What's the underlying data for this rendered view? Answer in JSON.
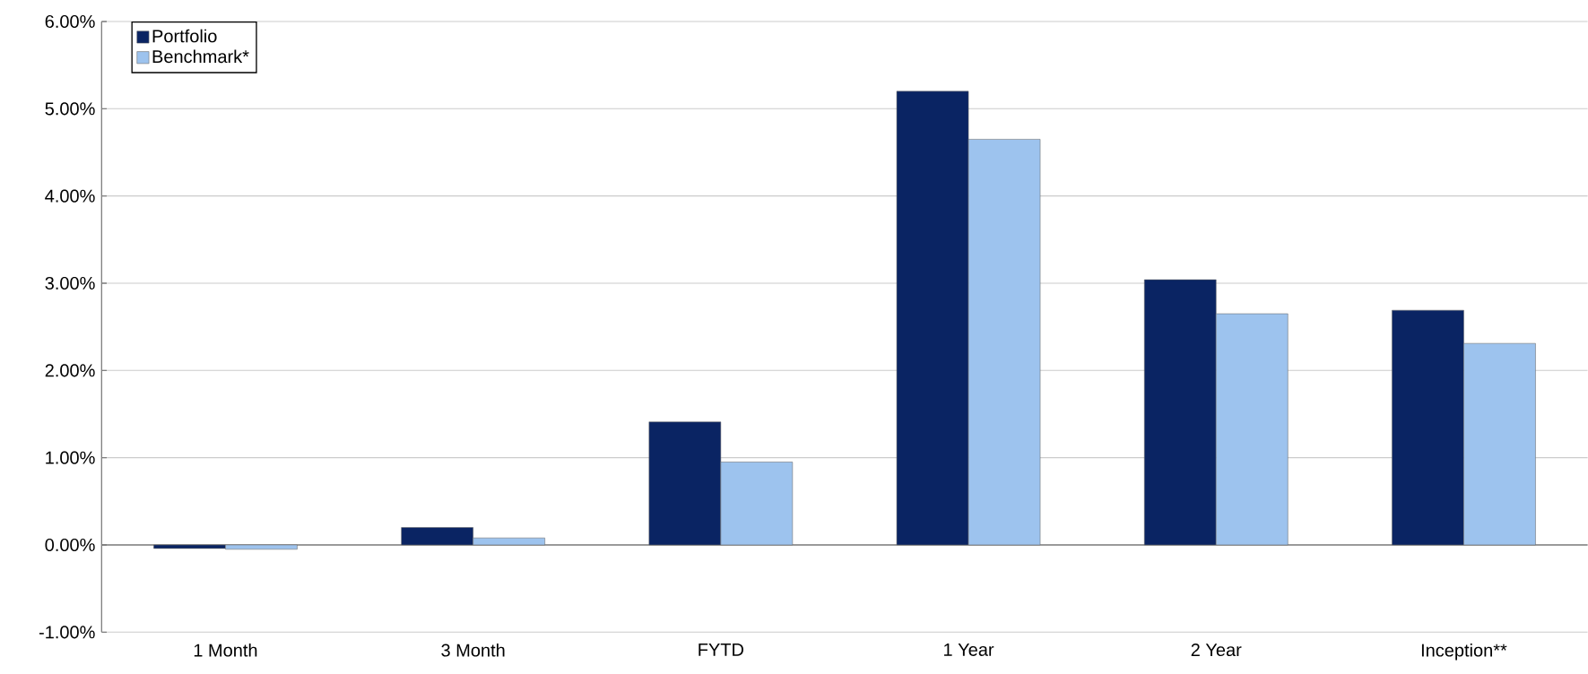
{
  "chart_data": {
    "type": "bar",
    "categories": [
      "1 Month",
      "3 Month",
      "FYTD",
      "1 Year",
      "2 Year",
      "Inception**"
    ],
    "series": [
      {
        "name": "Portfolio",
        "color": "#0a2463",
        "values": [
          -0.04,
          0.2,
          1.41,
          5.2,
          3.04,
          2.69
        ]
      },
      {
        "name": "Benchmark*",
        "color": "#9dc3ee",
        "values": [
          -0.05,
          0.08,
          0.95,
          4.65,
          2.65,
          2.31
        ]
      }
    ],
    "ylim": [
      -1,
      6
    ],
    "yticks": [
      {
        "value": -1,
        "label": "-1.00%"
      },
      {
        "value": 0,
        "label": "0.00%"
      },
      {
        "value": 1,
        "label": "1.00%"
      },
      {
        "value": 2,
        "label": "2.00%"
      },
      {
        "value": 3,
        "label": "3.00%"
      },
      {
        "value": 4,
        "label": "4.00%"
      },
      {
        "value": 5,
        "label": "5.00%"
      },
      {
        "value": 6,
        "label": "6.00%"
      }
    ],
    "grid": "y",
    "legend": "top left"
  }
}
